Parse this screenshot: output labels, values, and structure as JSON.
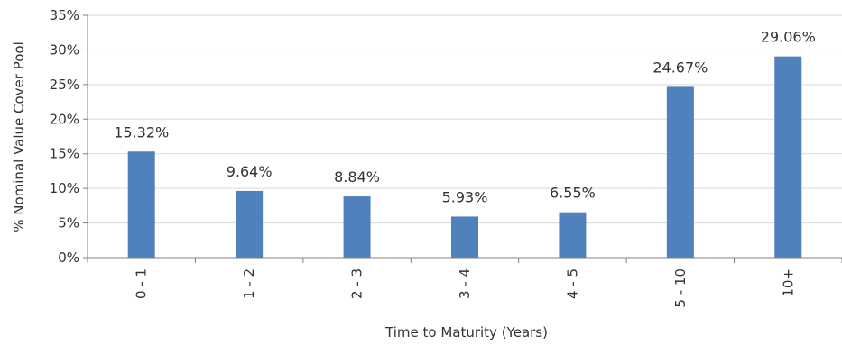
{
  "chart_data": {
    "type": "bar",
    "categories": [
      "0 - 1",
      "1 - 2",
      "2 - 3",
      "3 - 4",
      "4 - 5",
      "5 - 10",
      "10+"
    ],
    "values": [
      15.32,
      9.64,
      8.84,
      5.93,
      6.55,
      24.67,
      29.06
    ],
    "data_labels": [
      "15.32%",
      "9.64%",
      "8.84%",
      "5.93%",
      "6.55%",
      "24.67%",
      "29.06%"
    ],
    "xlabel": "Time to Maturity (Years)",
    "ylabel": "% Nominal Value Cover Pool",
    "ylim": [
      0,
      35
    ],
    "yticks": [
      0,
      5,
      10,
      15,
      20,
      25,
      30,
      35
    ],
    "ytick_labels": [
      "0%",
      "5%",
      "10%",
      "15%",
      "20%",
      "25%",
      "30%",
      "35%"
    ],
    "grid": true,
    "legend": "none",
    "colors": {
      "bar": "#4f81bd",
      "grid": "#d9d9d9",
      "axis": "#808080",
      "text": "#333333"
    }
  }
}
